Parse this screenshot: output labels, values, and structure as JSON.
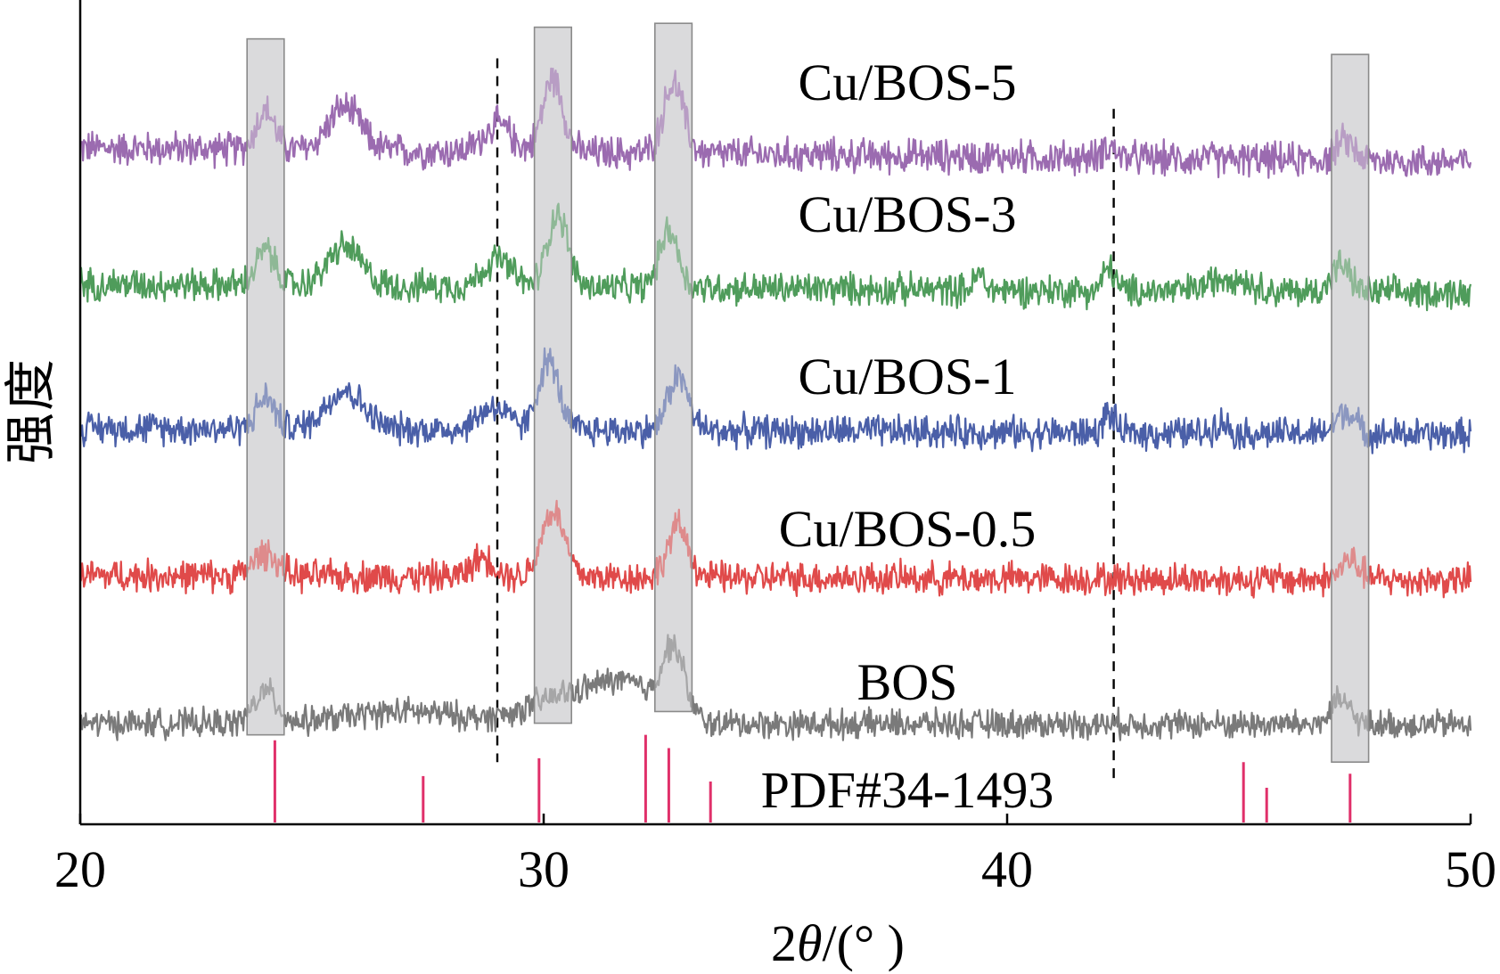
{
  "chart_data": {
    "type": "line",
    "title": "",
    "xlabel": "2θ/(°)",
    "xlabel_parts": {
      "num": "2",
      "theta": "θ",
      "rest": "/(° )"
    },
    "ylabel": "强度",
    "ylabel_chars": [
      "强",
      "度"
    ],
    "xlim": [
      20,
      50
    ],
    "xticks": [
      20,
      30,
      40,
      50
    ],
    "xtick_labels": [
      "20",
      "30",
      "40",
      "50"
    ],
    "ylim": [
      0,
      10.6
    ],
    "series": [
      {
        "name": "Cu/BOS-5",
        "label": "Cu/BOS-5",
        "color": "#9B6BB0",
        "baseline": 8.7,
        "noise": 0.18,
        "slope": -0.006,
        "peaks": [
          [
            24.0,
            0.5,
            0.2
          ],
          [
            25.7,
            0.55,
            0.35
          ],
          [
            29.0,
            0.35,
            0.3
          ],
          [
            30.2,
            0.95,
            0.22
          ],
          [
            32.8,
            0.9,
            0.22
          ],
          [
            42.2,
            0.15,
            0.15
          ],
          [
            47.3,
            0.25,
            0.2
          ]
        ]
      },
      {
        "name": "Cu/BOS-3",
        "label": "Cu/BOS-3",
        "color": "#4F9C5B",
        "baseline": 6.95,
        "noise": 0.17,
        "slope": -0.004,
        "peaks": [
          [
            24.0,
            0.45,
            0.2
          ],
          [
            25.7,
            0.5,
            0.35
          ],
          [
            29.0,
            0.35,
            0.3
          ],
          [
            30.3,
            0.95,
            0.22
          ],
          [
            32.7,
            0.75,
            0.2
          ],
          [
            39.4,
            0.2,
            0.1
          ],
          [
            42.2,
            0.3,
            0.12
          ],
          [
            44.8,
            0.2,
            0.4
          ],
          [
            47.2,
            0.35,
            0.2
          ]
        ]
      },
      {
        "name": "Cu/BOS-1",
        "label": "Cu/BOS-1",
        "color": "#4A5FA8",
        "baseline": 5.1,
        "noise": 0.17,
        "slope": -0.003,
        "peaks": [
          [
            24.0,
            0.4,
            0.2
          ],
          [
            25.7,
            0.5,
            0.4
          ],
          [
            28.9,
            0.3,
            0.3
          ],
          [
            30.1,
            0.9,
            0.22
          ],
          [
            32.9,
            0.7,
            0.22
          ],
          [
            42.2,
            0.25,
            0.12
          ],
          [
            44.6,
            0.15,
            0.15
          ],
          [
            47.3,
            0.3,
            0.2
          ]
        ]
      },
      {
        "name": "Cu/BOS-0.5",
        "label": "Cu/BOS-0.5",
        "color": "#E04A4A",
        "baseline": 3.2,
        "noise": 0.17,
        "slope": -0.002,
        "peaks": [
          [
            24.0,
            0.3,
            0.25
          ],
          [
            28.7,
            0.25,
            0.25
          ],
          [
            30.2,
            0.85,
            0.25
          ],
          [
            32.9,
            0.65,
            0.22
          ],
          [
            47.4,
            0.25,
            0.2
          ]
        ]
      },
      {
        "name": "BOS",
        "label": "BOS",
        "color": "#7A7A7A",
        "baseline": 1.3,
        "noise": 0.15,
        "slope": -0.0005,
        "peaks": [
          [
            24.0,
            0.4,
            0.25
          ],
          [
            27.0,
            0.15,
            1.2
          ],
          [
            30.5,
            0.35,
            0.8
          ],
          [
            31.8,
            0.45,
            0.6
          ],
          [
            32.8,
            0.9,
            0.25
          ],
          [
            47.2,
            0.3,
            0.2
          ]
        ]
      }
    ],
    "reference": {
      "name": "PDF#34-1493",
      "label": "PDF#34-1493",
      "color": "#E0306A",
      "lines": [
        {
          "x": 24.2,
          "h": 1.08
        },
        {
          "x": 27.4,
          "h": 0.62
        },
        {
          "x": 29.9,
          "h": 0.85
        },
        {
          "x": 32.2,
          "h": 1.15
        },
        {
          "x": 32.7,
          "h": 0.98
        },
        {
          "x": 33.6,
          "h": 0.55
        },
        {
          "x": 45.1,
          "h": 0.8
        },
        {
          "x": 45.6,
          "h": 0.47
        },
        {
          "x": 47.4,
          "h": 0.65
        }
      ]
    },
    "highlight_bands": [
      {
        "x0": 23.6,
        "x1": 24.4,
        "y0": 1.15,
        "y1": 10.1
      },
      {
        "x0": 29.8,
        "x1": 30.6,
        "y0": 1.3,
        "y1": 10.25
      },
      {
        "x0": 32.4,
        "x1": 33.2,
        "y0": 1.45,
        "y1": 10.3
      },
      {
        "x0": 47.0,
        "x1": 47.8,
        "y0": 0.8,
        "y1": 9.9
      }
    ],
    "dashed_lines": [
      29.0,
      42.3
    ],
    "band_color": "#D9D9DB",
    "axis_color": "#000000"
  }
}
